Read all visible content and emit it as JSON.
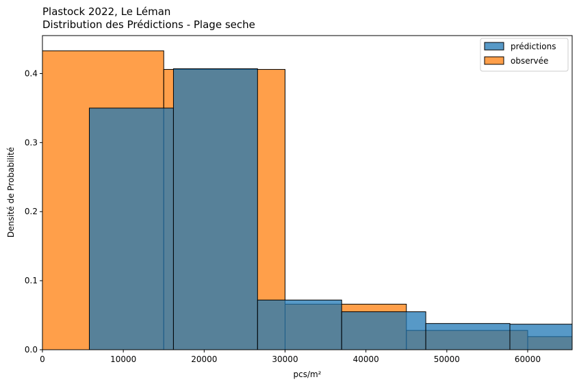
{
  "chart_data": {
    "type": "bar",
    "title_line1": "Plastock 2022, Le Léman",
    "title_line2": "Distribution des Prédictions - Plage seche",
    "xlabel": "pcs/m²",
    "ylabel": "Densité de Probabilité",
    "xlim": [
      0,
      65500
    ],
    "ylim": [
      0,
      0.455
    ],
    "x_ticks": [
      0,
      10000,
      20000,
      30000,
      40000,
      50000,
      60000
    ],
    "x_tick_labels": [
      "0",
      "10000",
      "20000",
      "30000",
      "40000",
      "50000",
      "60000"
    ],
    "y_ticks": [
      0.0,
      0.1,
      0.2,
      0.3,
      0.4
    ],
    "y_tick_labels": [
      "0.0",
      "0.1",
      "0.2",
      "0.3",
      "0.4"
    ],
    "grid": false,
    "legend_position": "top-right",
    "series": [
      {
        "name": "observée",
        "color": "#ff7f0e",
        "bins": [
          {
            "x0": 0,
            "x1": 15000,
            "density": 0.433
          },
          {
            "x0": 15000,
            "x1": 30000,
            "density": 0.406
          },
          {
            "x0": 30000,
            "x1": 45000,
            "density": 0.066
          },
          {
            "x0": 45000,
            "x1": 60000,
            "density": 0.028
          },
          {
            "x0": 60000,
            "x1": 75000,
            "density": 0.019
          }
        ]
      },
      {
        "name": "prédictions",
        "color": "#1f77b4",
        "bins": [
          {
            "x0": 5800,
            "x1": 16200,
            "density": 0.35
          },
          {
            "x0": 16200,
            "x1": 26600,
            "density": 0.407
          },
          {
            "x0": 26600,
            "x1": 37000,
            "density": 0.072
          },
          {
            "x0": 37000,
            "x1": 47400,
            "density": 0.055
          },
          {
            "x0": 47400,
            "x1": 57800,
            "density": 0.038
          },
          {
            "x0": 57800,
            "x1": 68200,
            "density": 0.037
          }
        ]
      }
    ]
  }
}
